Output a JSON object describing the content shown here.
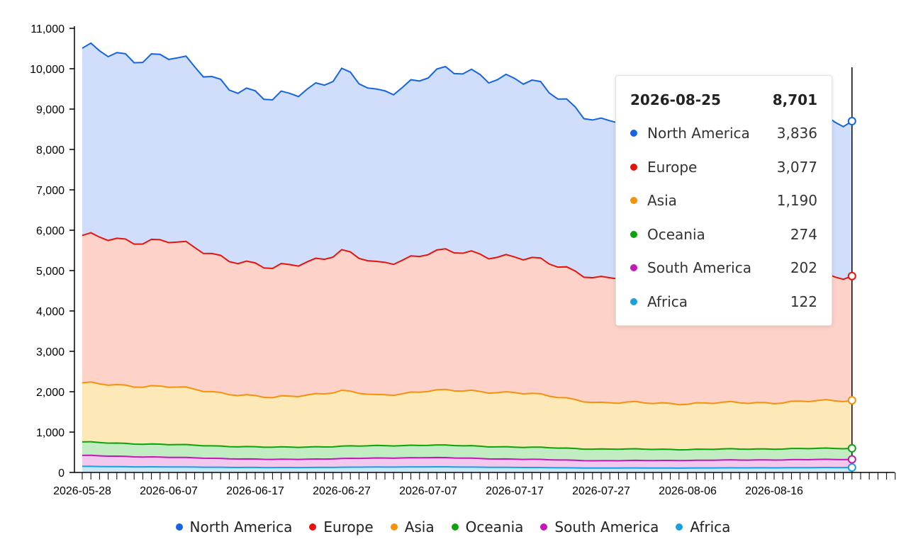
{
  "chart_data": {
    "type": "area",
    "stacked": true,
    "x_type": "date",
    "x_tick_labels": [
      "2026-05-28",
      "2026-06-07",
      "2026-06-17",
      "2026-06-27",
      "2026-07-07",
      "2026-07-17",
      "2026-07-27",
      "2026-08-06",
      "2026-08-16"
    ],
    "ylim": [
      0,
      11000
    ],
    "y_ticks": [
      0,
      1000,
      2000,
      3000,
      4000,
      5000,
      6000,
      7000,
      8000,
      9000,
      10000,
      11000
    ],
    "y_tick_labels": [
      "0",
      "1,000",
      "2,000",
      "3,000",
      "4,000",
      "5,000",
      "6,000",
      "7,000",
      "8,000",
      "9,000",
      "10,000",
      "11,000"
    ],
    "legend_position": "bottom",
    "series": [
      {
        "name": "Africa",
        "color": "#1a9fe0",
        "fill": "#c8e8f7",
        "points": [
          [
            "2026-05-28",
            150
          ],
          [
            "2026-06-19",
            120
          ],
          [
            "2026-07-07",
            140
          ],
          [
            "2026-07-27",
            110
          ],
          [
            "2026-08-06",
            110
          ],
          [
            "2026-08-25",
            122
          ]
        ]
      },
      {
        "name": "South America",
        "color": "#c317b8",
        "fill": "#f2c8ee",
        "points": [
          [
            "2026-05-28",
            270
          ],
          [
            "2026-06-19",
            200
          ],
          [
            "2026-07-07",
            230
          ],
          [
            "2026-07-27",
            180
          ],
          [
            "2026-08-06",
            190
          ],
          [
            "2026-08-25",
            202
          ]
        ]
      },
      {
        "name": "Oceania",
        "color": "#0ca30c",
        "fill": "#c2edc2",
        "points": [
          [
            "2026-05-28",
            330
          ],
          [
            "2026-06-19",
            300
          ],
          [
            "2026-07-07",
            310
          ],
          [
            "2026-07-27",
            290
          ],
          [
            "2026-08-06",
            270
          ],
          [
            "2026-08-25",
            274
          ]
        ]
      },
      {
        "name": "Asia",
        "color": "#f5910a",
        "fill": "#fde9b7",
        "points": [
          [
            "2026-05-28",
            1450
          ],
          [
            "2026-06-07",
            1430
          ],
          [
            "2026-06-19",
            1220
          ],
          [
            "2026-06-27",
            1370
          ],
          [
            "2026-07-01",
            1240
          ],
          [
            "2026-07-07",
            1350
          ],
          [
            "2026-07-17",
            1360
          ],
          [
            "2026-07-27",
            1150
          ],
          [
            "2026-08-06",
            1140
          ],
          [
            "2026-08-16",
            1150
          ],
          [
            "2026-08-25",
            1190
          ]
        ]
      },
      {
        "name": "Europe",
        "color": "#e8120c",
        "fill": "#fdd2c9",
        "points": [
          [
            "2026-05-28",
            3620
          ],
          [
            "2026-06-07",
            3600
          ],
          [
            "2026-06-19",
            3180
          ],
          [
            "2026-06-27",
            3450
          ],
          [
            "2026-07-01",
            3240
          ],
          [
            "2026-07-07",
            3430
          ],
          [
            "2026-07-17",
            3380
          ],
          [
            "2026-07-27",
            3100
          ],
          [
            "2026-08-06",
            3100
          ],
          [
            "2026-08-16",
            3050
          ],
          [
            "2026-08-25",
            3077
          ]
        ]
      },
      {
        "name": "North America",
        "color": "#1565e0",
        "fill": "#d0defb",
        "points": [
          [
            "2026-05-28",
            4600
          ],
          [
            "2026-06-07",
            4560
          ],
          [
            "2026-06-19",
            4150
          ],
          [
            "2026-06-27",
            4450
          ],
          [
            "2026-07-01",
            4200
          ],
          [
            "2026-07-07",
            4430
          ],
          [
            "2026-07-17",
            4450
          ],
          [
            "2026-07-27",
            3900
          ],
          [
            "2026-08-06",
            3850
          ],
          [
            "2026-08-16",
            3850
          ],
          [
            "2026-08-25",
            3836
          ]
        ]
      }
    ],
    "tooltip": {
      "date": "2026-08-25",
      "total": "8,701",
      "rows": [
        {
          "name": "North America",
          "value": "3,836",
          "color": "#1565e0"
        },
        {
          "name": "Europe",
          "value": "3,077",
          "color": "#e8120c"
        },
        {
          "name": "Asia",
          "value": "1,190",
          "color": "#f5910a"
        },
        {
          "name": "Oceania",
          "value": "274",
          "color": "#0ca30c"
        },
        {
          "name": "South America",
          "value": "202",
          "color": "#c317b8"
        },
        {
          "name": "Africa",
          "value": "122",
          "color": "#1a9fe0"
        }
      ]
    },
    "legend": [
      {
        "name": "North America",
        "color": "#1565e0"
      },
      {
        "name": "Europe",
        "color": "#e8120c"
      },
      {
        "name": "Asia",
        "color": "#f5910a"
      },
      {
        "name": "Oceania",
        "color": "#0ca30c"
      },
      {
        "name": "South America",
        "color": "#c317b8"
      },
      {
        "name": "Africa",
        "color": "#1a9fe0"
      }
    ]
  }
}
